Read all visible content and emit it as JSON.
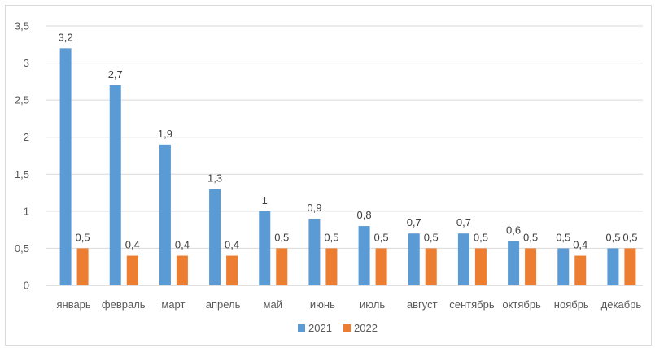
{
  "chart_data": {
    "type": "bar",
    "categories": [
      "январь",
      "февраль",
      "март",
      "апрель",
      "май",
      "июнь",
      "июль",
      "август",
      "сентябрь",
      "октябрь",
      "ноябрь",
      "декабрь"
    ],
    "series": [
      {
        "name": "2021",
        "color": "#5b9bd5",
        "values": [
          3.2,
          2.7,
          1.9,
          1.3,
          1,
          0.9,
          0.8,
          0.7,
          0.7,
          0.6,
          0.5,
          0.5
        ],
        "labels": [
          "3,2",
          "2,7",
          "1,9",
          "1,3",
          "1",
          "0,9",
          "0,8",
          "0,7",
          "0,7",
          "0,6",
          "0,5",
          "0,5"
        ]
      },
      {
        "name": "2022",
        "color": "#ed7d31",
        "values": [
          0.5,
          0.4,
          0.4,
          0.4,
          0.5,
          0.5,
          0.5,
          0.5,
          0.5,
          0.5,
          0.4,
          0.5
        ],
        "labels": [
          "0,5",
          "0,4",
          "0,4",
          "0,4",
          "0,5",
          "0,5",
          "0,5",
          "0,5",
          "0,5",
          "0,5",
          "0,4",
          "0,5"
        ]
      }
    ],
    "ylim": [
      0,
      3.5
    ],
    "yticks": [
      "0",
      "0,5",
      "1",
      "1,5",
      "2",
      "2,5",
      "3",
      "3,5"
    ],
    "grid": true,
    "legend": "bottom-center",
    "title": "",
    "xlabel": "",
    "ylabel": ""
  }
}
